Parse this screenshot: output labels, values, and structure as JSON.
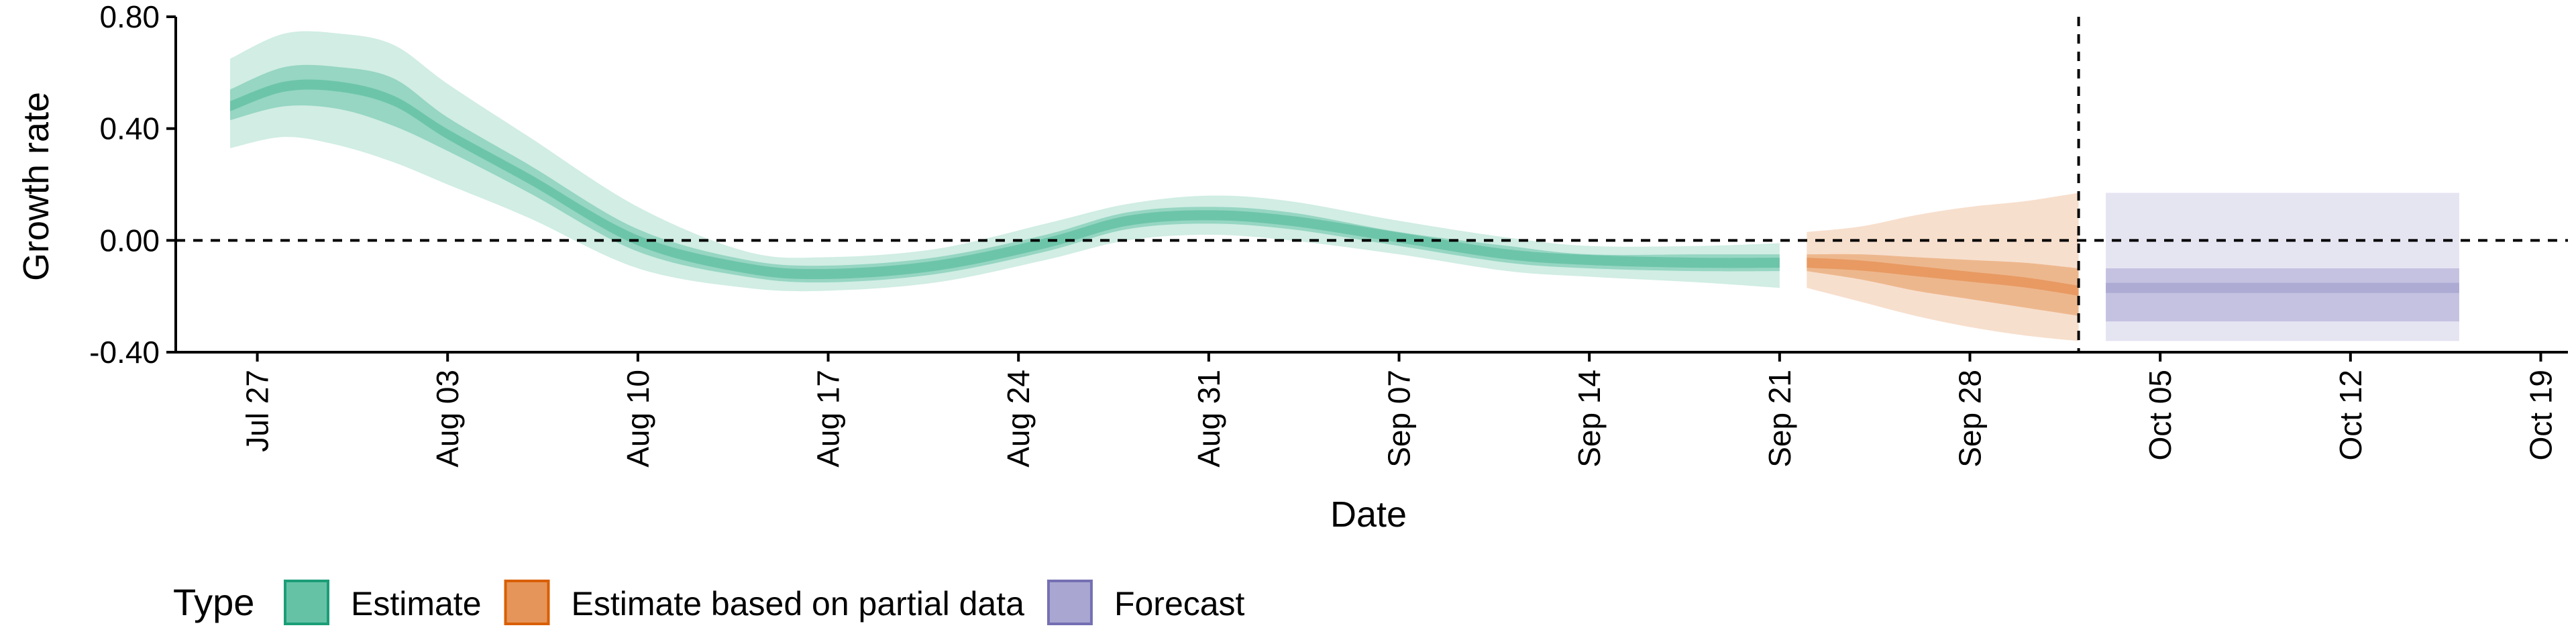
{
  "chart_data": {
    "type": "area",
    "title": "",
    "xlabel": "Date",
    "ylabel": "Growth rate",
    "x_range": [
      "2020-07-24",
      "2020-10-20"
    ],
    "ylim": [
      -0.4,
      0.8
    ],
    "y_ticks": [
      -0.4,
      0,
      0.4,
      0.8
    ],
    "y_tick_labels": [
      "-0.40",
      "0.00",
      "0.40",
      "0.80"
    ],
    "x_ticks": [
      "2020-07-27",
      "2020-08-03",
      "2020-08-10",
      "2020-08-17",
      "2020-08-24",
      "2020-08-31",
      "2020-09-07",
      "2020-09-14",
      "2020-09-21",
      "2020-09-28",
      "2020-10-05",
      "2020-10-12",
      "2020-10-19"
    ],
    "x_tick_labels": [
      "Jul 27",
      "Aug 03",
      "Aug 10",
      "Aug 17",
      "Aug 24",
      "Aug 31",
      "Sep 07",
      "Sep 14",
      "Sep 21",
      "Sep 28",
      "Oct 05",
      "Oct 12",
      "Oct 19"
    ],
    "grid": false,
    "reference_lines": {
      "y": 0,
      "x": "2020-10-02",
      "style": "dashed"
    },
    "legend": {
      "title": "Type",
      "position": "bottom-left",
      "entries": [
        {
          "label": "Estimate",
          "color": "#66c2a5",
          "border": "#1b9e77"
        },
        {
          "label": "Estimate based on partial data",
          "color": "#e6955a",
          "border": "#d95f02"
        },
        {
          "label": "Forecast",
          "color": "#a9a6d1",
          "border": "#7570b3"
        }
      ]
    },
    "series": [
      {
        "type": "Estimate",
        "color": "#66c2a5",
        "dates": [
          "2020-07-26",
          "2020-07-28",
          "2020-07-30",
          "2020-08-01",
          "2020-08-03",
          "2020-08-06",
          "2020-08-10",
          "2020-08-14",
          "2020-08-17",
          "2020-08-21",
          "2020-08-25",
          "2020-08-28",
          "2020-08-31",
          "2020-09-03",
          "2020-09-07",
          "2020-09-11",
          "2020-09-14",
          "2020-09-18",
          "2020-09-21"
        ],
        "median": [
          0.48,
          0.55,
          0.55,
          0.5,
          0.38,
          0.22,
          0.0,
          -0.1,
          -0.12,
          -0.09,
          -0.01,
          0.07,
          0.09,
          0.07,
          0.01,
          -0.05,
          -0.07,
          -0.08,
          -0.08
        ],
        "lower_90": [
          0.33,
          0.37,
          0.34,
          0.28,
          0.2,
          0.08,
          -0.1,
          -0.17,
          -0.18,
          -0.15,
          -0.07,
          0.0,
          0.02,
          0.0,
          -0.05,
          -0.11,
          -0.13,
          -0.15,
          -0.17
        ],
        "upper_90": [
          0.65,
          0.74,
          0.74,
          0.7,
          0.56,
          0.37,
          0.12,
          -0.04,
          -0.06,
          -0.03,
          0.06,
          0.13,
          0.16,
          0.14,
          0.07,
          0.01,
          -0.02,
          -0.02,
          -0.01
        ],
        "lower_50": [
          0.43,
          0.48,
          0.47,
          0.41,
          0.32,
          0.17,
          -0.04,
          -0.13,
          -0.15,
          -0.12,
          -0.04,
          0.04,
          0.06,
          0.04,
          -0.02,
          -0.08,
          -0.1,
          -0.11,
          -0.11
        ],
        "upper_50": [
          0.54,
          0.62,
          0.62,
          0.58,
          0.44,
          0.27,
          0.04,
          -0.07,
          -0.09,
          -0.06,
          0.02,
          0.1,
          0.12,
          0.1,
          0.03,
          -0.02,
          -0.05,
          -0.05,
          -0.05
        ]
      },
      {
        "type": "Estimate based on partial data",
        "color": "#e6955a",
        "dates": [
          "2020-09-22",
          "2020-09-24",
          "2020-09-26",
          "2020-09-28",
          "2020-09-30",
          "2020-10-02"
        ],
        "median": [
          -0.08,
          -0.09,
          -0.11,
          -0.13,
          -0.15,
          -0.18
        ],
        "lower_90": [
          -0.17,
          -0.22,
          -0.27,
          -0.31,
          -0.34,
          -0.36
        ],
        "upper_90": [
          0.03,
          0.05,
          0.09,
          0.12,
          0.14,
          0.17
        ],
        "lower_50": [
          -0.11,
          -0.14,
          -0.18,
          -0.21,
          -0.24,
          -0.27
        ],
        "upper_50": [
          -0.05,
          -0.05,
          -0.06,
          -0.07,
          -0.08,
          -0.1
        ]
      },
      {
        "type": "Forecast",
        "color": "#a9a6d1",
        "dates": [
          "2020-10-03",
          "2020-10-16"
        ],
        "median": [
          -0.17,
          -0.17
        ],
        "lower_90": [
          -0.36,
          -0.36
        ],
        "upper_90": [
          0.17,
          0.17
        ],
        "lower_50": [
          -0.29,
          -0.29
        ],
        "upper_50": [
          -0.1,
          -0.1
        ]
      }
    ]
  }
}
